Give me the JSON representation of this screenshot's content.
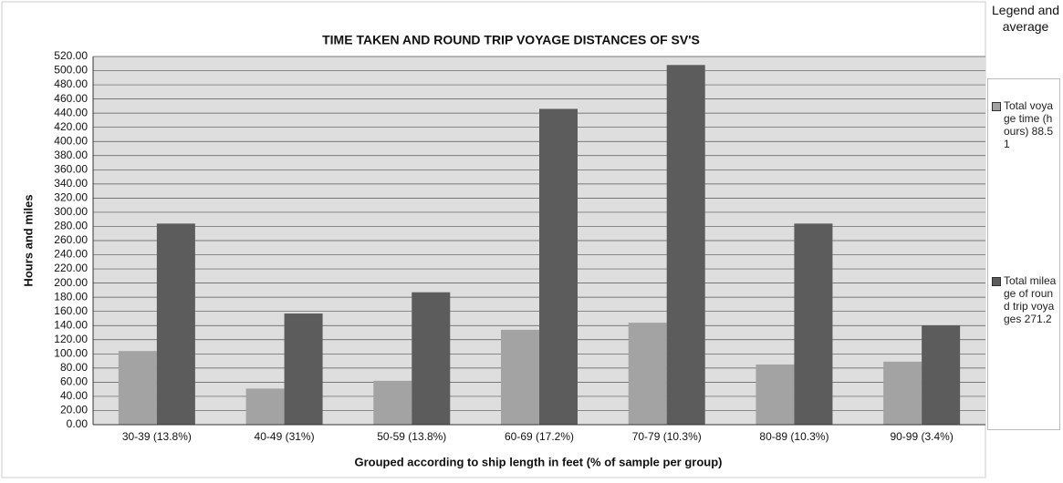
{
  "chart_data": {
    "type": "bar",
    "title": "TIME TAKEN AND ROUND TRIP VOYAGE DISTANCES OF SV'S",
    "x_label": "Grouped according to ship length in feet (% of sample per group)",
    "y_label": "Hours and miles",
    "legend_title": "Legend and average",
    "categories": [
      "30-39 (13.8%)",
      "40-49 (31%)",
      "50-59 (13.8%)",
      "60-69 (17.2%)",
      "70-79 (10.3%)",
      "80-89 (10.3%)",
      "90-99 (3.4%)"
    ],
    "series": [
      {
        "name": "Total voyage time (hours) 88.51",
        "color": "#a3a3a3",
        "values": [
          104,
          51,
          62,
          134,
          144,
          85,
          89
        ]
      },
      {
        "name": "Total mileage of round trip voyages 271.2",
        "color": "#5c5c5c",
        "values": [
          284,
          157,
          187,
          446,
          508,
          284,
          140
        ]
      }
    ],
    "ylim": [
      0,
      520
    ],
    "yticks": [
      {
        "value": 0,
        "label": "0.00"
      },
      {
        "value": 20,
        "label": "20.00"
      },
      {
        "value": 40,
        "label": "40.00"
      },
      {
        "value": 60,
        "label": "60.00"
      },
      {
        "value": 80,
        "label": "80.00"
      },
      {
        "value": 100,
        "label": "100.00"
      },
      {
        "value": 120,
        "label": "120.00"
      },
      {
        "value": 140,
        "label": "140.00"
      },
      {
        "value": 160,
        "label": "160.00"
      },
      {
        "value": 180,
        "label": "180.00"
      },
      {
        "value": 200,
        "label": "200.00"
      },
      {
        "value": 220,
        "label": "220.00"
      },
      {
        "value": 240,
        "label": "240.00"
      },
      {
        "value": 260,
        "label": "260.00"
      },
      {
        "value": 280,
        "label": "280.00"
      },
      {
        "value": 300,
        "label": "300.00"
      },
      {
        "value": 320,
        "label": "320.00"
      },
      {
        "value": 340,
        "label": "340.00"
      },
      {
        "value": 360,
        "label": "360.00"
      },
      {
        "value": 380,
        "label": "380.00"
      },
      {
        "value": 400,
        "label": "400.00"
      },
      {
        "value": 420,
        "label": "420.00"
      },
      {
        "value": 440,
        "label": "440.00"
      },
      {
        "value": 460,
        "label": "460.00"
      },
      {
        "value": 480,
        "label": "480.00"
      },
      {
        "value": 500,
        "label": "500.00"
      },
      {
        "value": 520,
        "label": "520.00"
      }
    ],
    "grid": true
  }
}
